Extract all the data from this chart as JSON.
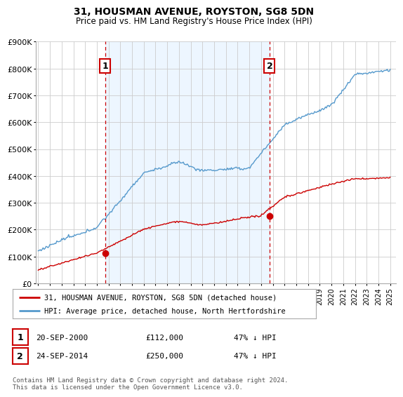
{
  "title": "31, HOUSMAN AVENUE, ROYSTON, SG8 5DN",
  "subtitle": "Price paid vs. HM Land Registry's House Price Index (HPI)",
  "ylim": [
    0,
    900000
  ],
  "yticks": [
    0,
    100000,
    200000,
    300000,
    400000,
    500000,
    600000,
    700000,
    800000,
    900000
  ],
  "x_start_year": 1995,
  "x_end_year": 2025,
  "sale1_year": 2000.72,
  "sale1_price": 112000,
  "sale1_label": "1",
  "sale1_date": "20-SEP-2000",
  "sale1_hpi_diff": "47% ↓ HPI",
  "sale2_year": 2014.72,
  "sale2_price": 250000,
  "sale2_label": "2",
  "sale2_date": "24-SEP-2014",
  "sale2_hpi_diff": "47% ↓ HPI",
  "red_color": "#cc0000",
  "blue_color": "#5599cc",
  "blue_fill": "#ddeeff",
  "legend_label1": "31, HOUSMAN AVENUE, ROYSTON, SG8 5DN (detached house)",
  "legend_label2": "HPI: Average price, detached house, North Hertfordshire",
  "footnote": "Contains HM Land Registry data © Crown copyright and database right 2024.\nThis data is licensed under the Open Government Licence v3.0.",
  "background_color": "#ffffff",
  "grid_color": "#cccccc"
}
